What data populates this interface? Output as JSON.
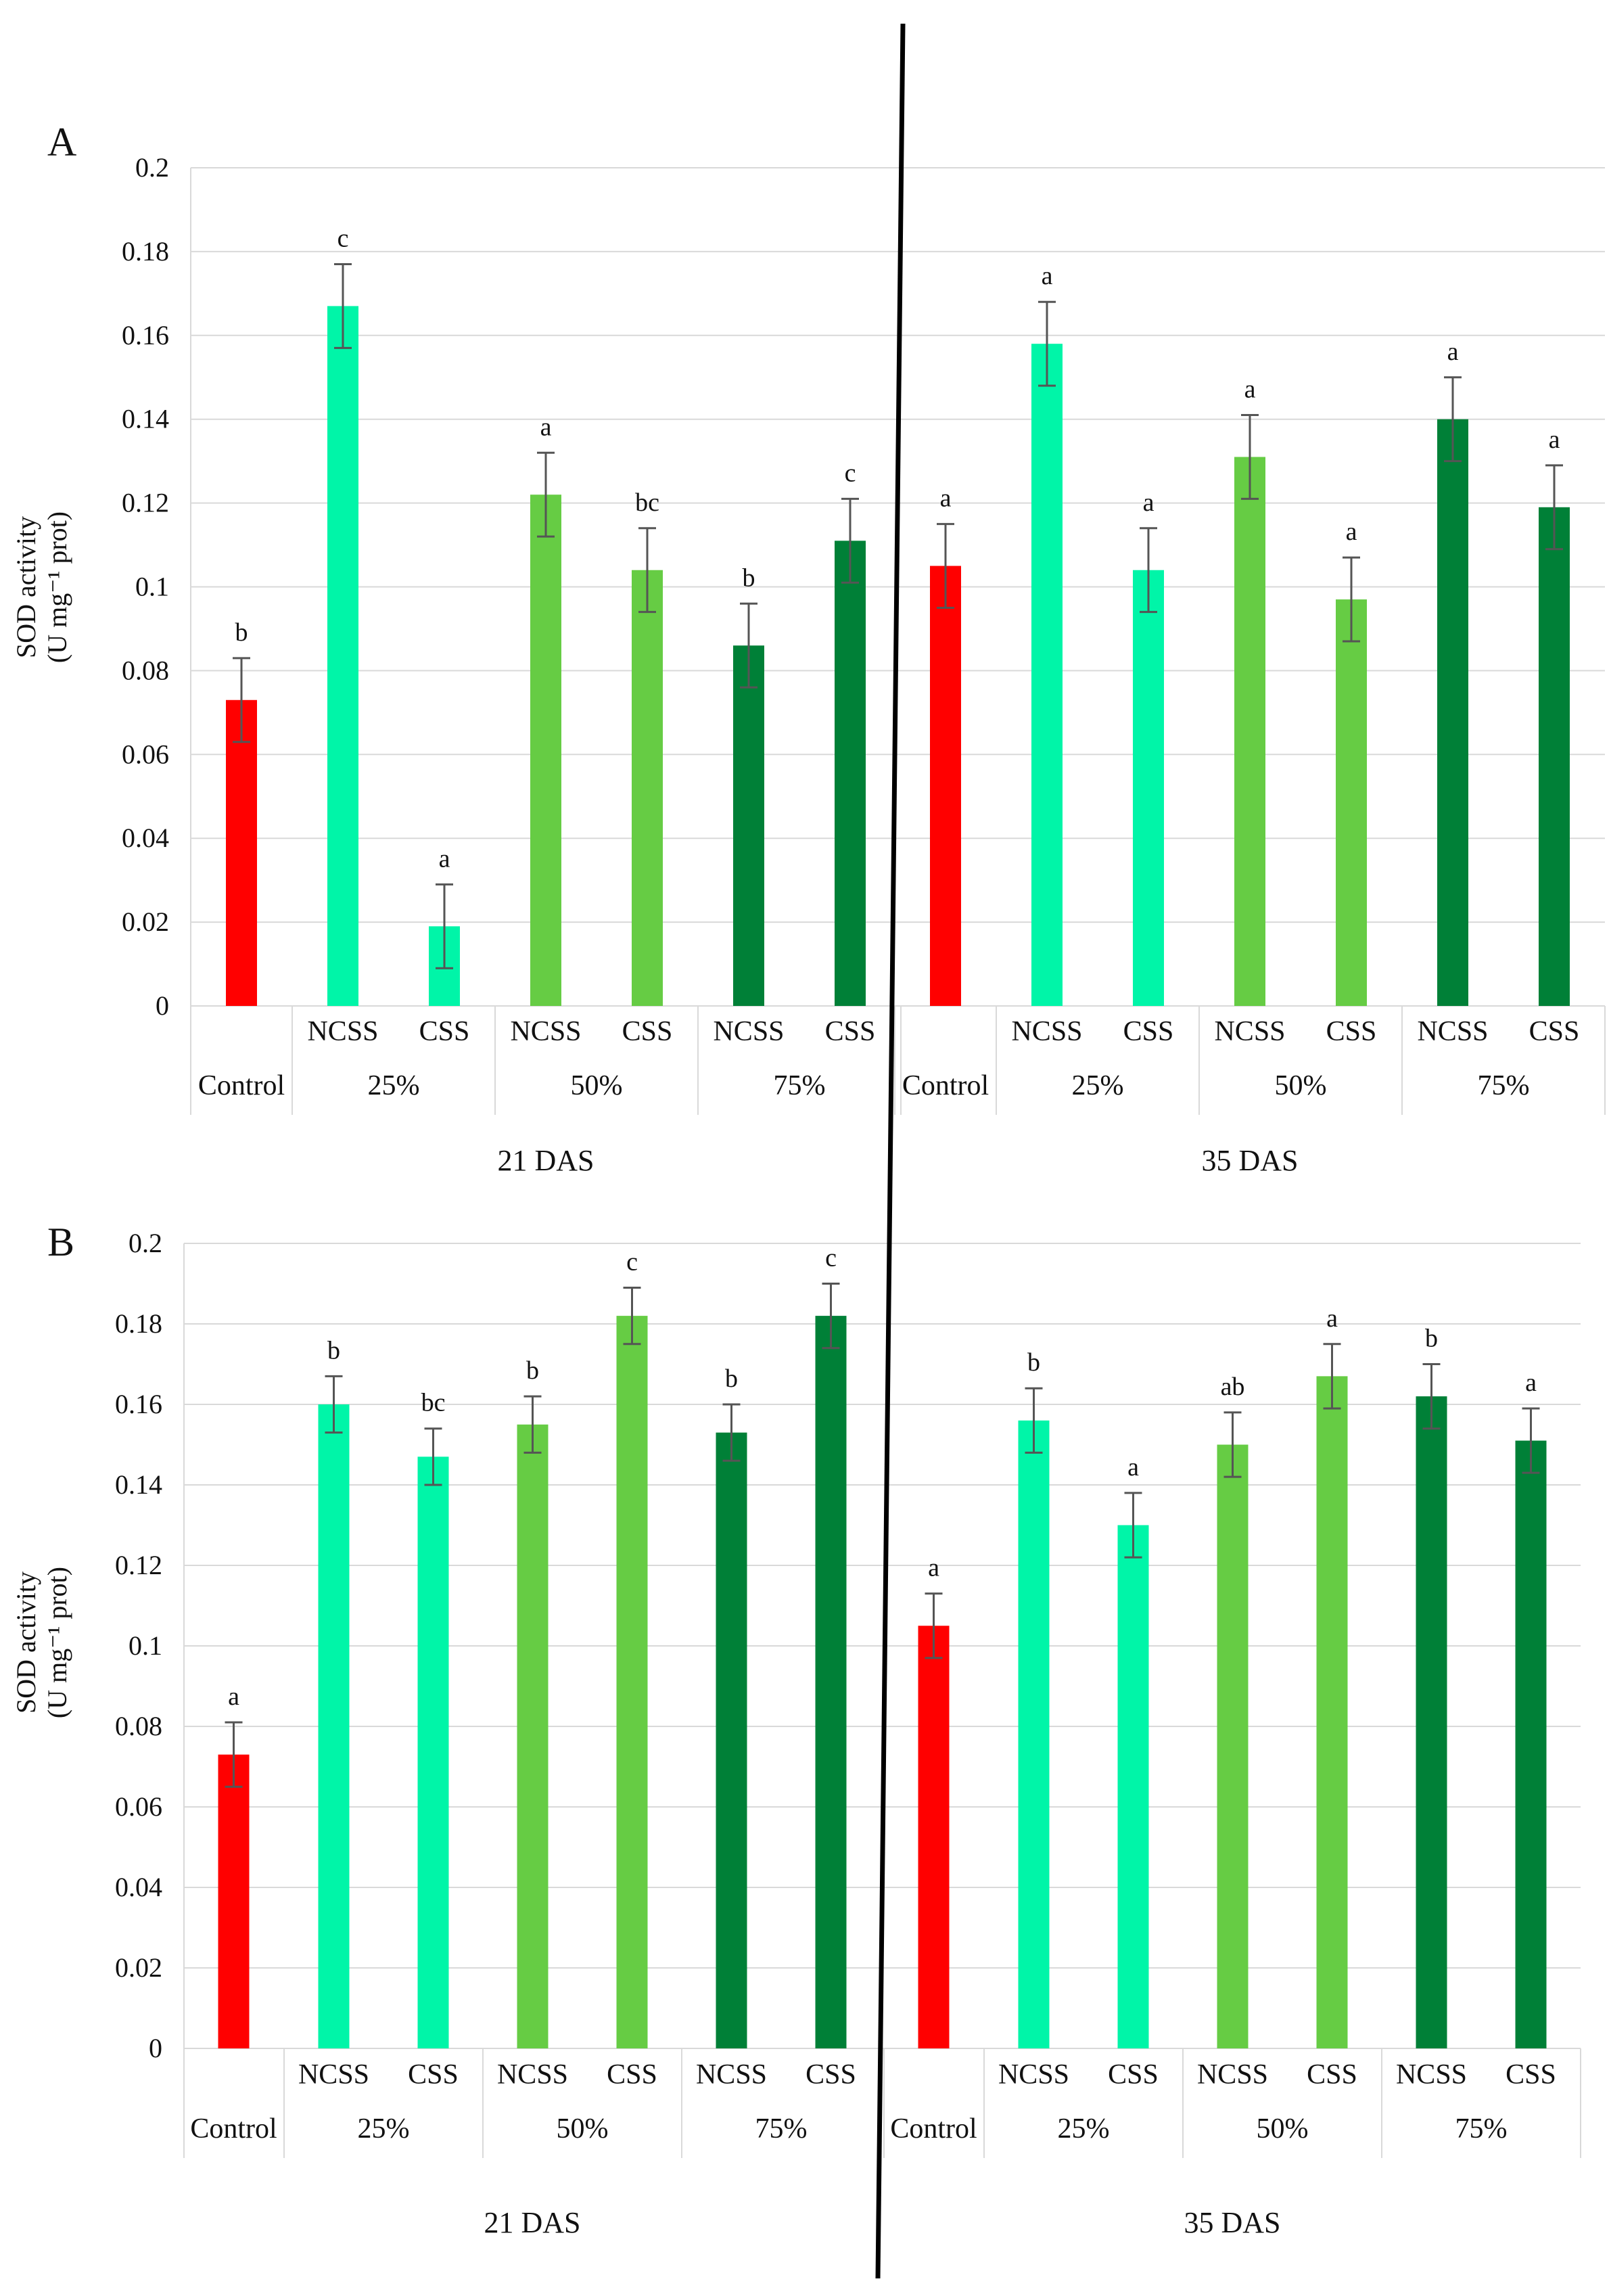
{
  "figure": {
    "divider_color": "#000000",
    "axis_color": "#d9d9d9",
    "grid_color": "#d9d9d9",
    "error_bar_color": "#555555"
  },
  "chart_data": [
    {
      "type": "bar",
      "panel": "A",
      "ylabel_line1": "SOD activity",
      "ylabel_line2": "(U mg⁻¹ prot)",
      "ylim": [
        0,
        0.2
      ],
      "ytick_step": 0.02,
      "ytick_labels": [
        "0",
        "0.02",
        "0.04",
        "0.06",
        "0.08",
        "0.1",
        "0.12",
        "0.14",
        "0.16",
        "0.18",
        "0.2"
      ],
      "grid": true,
      "groups": [
        {
          "label": "21 DAS",
          "bars": [
            {
              "treatment": "Control",
              "type": "",
              "value": 0.073,
              "error": 0.01,
              "letter": "b",
              "color": "#ff0000"
            },
            {
              "treatment": "25%",
              "type": "NCSS",
              "value": 0.167,
              "error": 0.01,
              "letter": "c",
              "color": "#00f5a8"
            },
            {
              "treatment": "25%",
              "type": "CSS",
              "value": 0.019,
              "error": 0.01,
              "letter": "a",
              "color": "#00f5a8"
            },
            {
              "treatment": "50%",
              "type": "NCSS",
              "value": 0.122,
              "error": 0.01,
              "letter": "a",
              "color": "#66cc44"
            },
            {
              "treatment": "50%",
              "type": "CSS",
              "value": 0.104,
              "error": 0.01,
              "letter": "bc",
              "color": "#66cc44"
            },
            {
              "treatment": "75%",
              "type": "NCSS",
              "value": 0.086,
              "error": 0.01,
              "letter": "b",
              "color": "#008037"
            },
            {
              "treatment": "75%",
              "type": "CSS",
              "value": 0.111,
              "error": 0.01,
              "letter": "c",
              "color": "#008037"
            }
          ]
        },
        {
          "label": "35 DAS",
          "bars": [
            {
              "treatment": "Control",
              "type": "",
              "value": 0.105,
              "error": 0.01,
              "letter": "a",
              "color": "#ff0000"
            },
            {
              "treatment": "25%",
              "type": "NCSS",
              "value": 0.158,
              "error": 0.01,
              "letter": "a",
              "color": "#00f5a8"
            },
            {
              "treatment": "25%",
              "type": "CSS",
              "value": 0.104,
              "error": 0.01,
              "letter": "a",
              "color": "#00f5a8"
            },
            {
              "treatment": "50%",
              "type": "NCSS",
              "value": 0.131,
              "error": 0.01,
              "letter": "a",
              "color": "#66cc44"
            },
            {
              "treatment": "50%",
              "type": "CSS",
              "value": 0.097,
              "error": 0.01,
              "letter": "a",
              "color": "#66cc44"
            },
            {
              "treatment": "75%",
              "type": "NCSS",
              "value": 0.14,
              "error": 0.01,
              "letter": "a",
              "color": "#008037"
            },
            {
              "treatment": "75%",
              "type": "CSS",
              "value": 0.119,
              "error": 0.01,
              "letter": "a",
              "color": "#008037"
            }
          ]
        }
      ]
    },
    {
      "type": "bar",
      "panel": "B",
      "ylabel_line1": "SOD activity",
      "ylabel_line2": "(U mg⁻¹ prot)",
      "ylim": [
        0,
        0.2
      ],
      "ytick_step": 0.02,
      "ytick_labels": [
        "0",
        "0.02",
        "0.04",
        "0.06",
        "0.08",
        "0.1",
        "0.12",
        "0.14",
        "0.16",
        "0.18",
        "0.2"
      ],
      "grid": true,
      "groups": [
        {
          "label": "21 DAS",
          "bars": [
            {
              "treatment": "Control",
              "type": "",
              "value": 0.073,
              "error": 0.008,
              "letter": "a",
              "color": "#ff0000"
            },
            {
              "treatment": "25%",
              "type": "NCSS",
              "value": 0.16,
              "error": 0.007,
              "letter": "b",
              "color": "#00f5a8"
            },
            {
              "treatment": "25%",
              "type": "CSS",
              "value": 0.147,
              "error": 0.007,
              "letter": "bc",
              "color": "#00f5a8"
            },
            {
              "treatment": "50%",
              "type": "NCSS",
              "value": 0.155,
              "error": 0.007,
              "letter": "b",
              "color": "#66cc44"
            },
            {
              "treatment": "50%",
              "type": "CSS",
              "value": 0.182,
              "error": 0.007,
              "letter": "c",
              "color": "#66cc44"
            },
            {
              "treatment": "75%",
              "type": "NCSS",
              "value": 0.153,
              "error": 0.007,
              "letter": "b",
              "color": "#008037"
            },
            {
              "treatment": "75%",
              "type": "CSS",
              "value": 0.182,
              "error": 0.008,
              "letter": "c",
              "color": "#008037"
            }
          ]
        },
        {
          "label": "35 DAS",
          "bars": [
            {
              "treatment": "Control",
              "type": "",
              "value": 0.105,
              "error": 0.008,
              "letter": "a",
              "color": "#ff0000"
            },
            {
              "treatment": "25%",
              "type": "NCSS",
              "value": 0.156,
              "error": 0.008,
              "letter": "b",
              "color": "#00f5a8"
            },
            {
              "treatment": "25%",
              "type": "CSS",
              "value": 0.13,
              "error": 0.008,
              "letter": "a",
              "color": "#00f5a8"
            },
            {
              "treatment": "50%",
              "type": "NCSS",
              "value": 0.15,
              "error": 0.008,
              "letter": "ab",
              "color": "#66cc44"
            },
            {
              "treatment": "50%",
              "type": "CSS",
              "value": 0.167,
              "error": 0.008,
              "letter": "a",
              "color": "#66cc44"
            },
            {
              "treatment": "75%",
              "type": "NCSS",
              "value": 0.162,
              "error": 0.008,
              "letter": "b",
              "color": "#008037"
            },
            {
              "treatment": "75%",
              "type": "CSS",
              "value": 0.151,
              "error": 0.008,
              "letter": "a",
              "color": "#008037"
            }
          ]
        }
      ]
    }
  ]
}
